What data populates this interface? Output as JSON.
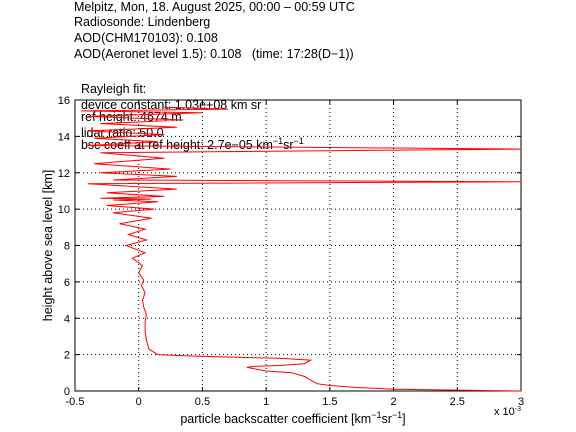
{
  "header": {
    "line1": "Melpitz, Mon, 18. August 2025, 00:00 – 00:59 UTC",
    "line2": "Radiosonde: Lindenberg",
    "line3": "AOD(CHM170103): 0.108",
    "line4": "AOD(Aeronet level 1.5): 0.108   (time: 17:28(D−1))",
    "rayleigh_label": "Rayleigh fit:",
    "ref_height": "ref height: 4674 m",
    "bsc_coeff_prefix": "bsc coeff at ref height: 2.7e−05 km",
    "bsc_sup1": "−1",
    "bsc_sr": "sr",
    "bsc_sup2": "−1",
    "device_constant": "device constant: 1.03e+08 km sr",
    "lidar_ratio": "lidar ratio: 50.0"
  },
  "axes": {
    "xlabel_main": "particle backscatter coefficient [km",
    "xlabel_sup1": "−1",
    "xlabel_sr": "sr",
    "xlabel_sup2": "−1",
    "xlabel_close": "]",
    "ylabel": "height above sea level [km]",
    "x_multiplier": "x 10",
    "x_multiplier_exp": "-3"
  },
  "colors": {
    "profile": "#ff0000",
    "grid": "#000000",
    "axes": "#000000"
  },
  "chart_data": {
    "type": "line",
    "title": "",
    "xlabel": "particle backscatter coefficient [km-1 sr-1]",
    "ylabel": "height above sea level [km]",
    "x_scale_note": "x 10^-3",
    "xlim": [
      -0.5,
      3
    ],
    "ylim": [
      0,
      16
    ],
    "x_ticks": [
      -0.5,
      0,
      0.5,
      1,
      1.5,
      2,
      2.5,
      3
    ],
    "x_tick_labels": [
      "-0.5",
      "0",
      "0.5",
      "1",
      "1.5",
      "2",
      "2.5",
      "3"
    ],
    "y_ticks": [
      0,
      2,
      4,
      6,
      8,
      10,
      12,
      14,
      16
    ],
    "y_tick_labels": [
      "0",
      "2",
      "4",
      "6",
      "8",
      "10",
      "12",
      "14",
      "16"
    ],
    "grid": true,
    "series": [
      {
        "color": "#ff0000",
        "x": [
          3.0,
          2.5,
          2.0,
          1.7,
          1.5,
          1.4,
          1.35,
          1.3,
          1.2,
          1.0,
          0.85,
          0.9,
          1.1,
          1.3,
          1.35,
          1.1,
          0.8,
          0.5,
          0.3,
          0.15,
          0.08,
          0.06,
          0.05,
          0.05,
          0.06,
          0.04,
          0.03,
          0.05,
          0.02,
          0.04,
          0.0,
          0.03,
          -0.05,
          0.05,
          -0.1,
          0.06,
          -0.08,
          0.05,
          -0.15,
          0.1,
          -0.2,
          0.12,
          -0.25,
          0.15,
          -0.2,
          0.1,
          -0.3,
          0.2,
          -0.25,
          0.3,
          -0.4,
          3.0,
          -0.2,
          0.3,
          -0.3,
          0.25,
          -0.35,
          0.2,
          -0.3,
          3.0,
          -0.4,
          0.15,
          -0.35,
          0.2,
          -0.4,
          0.3,
          -0.3,
          0.35,
          -0.4,
          0.5,
          -0.45,
          0.7,
          0.2
        ],
        "y": [
          0.0,
          0.05,
          0.1,
          0.2,
          0.3,
          0.4,
          0.6,
          0.8,
          1.0,
          1.1,
          1.3,
          1.35,
          1.4,
          1.5,
          1.7,
          1.8,
          1.85,
          1.9,
          1.95,
          2.0,
          2.3,
          2.8,
          3.3,
          3.8,
          4.2,
          4.6,
          5.0,
          5.4,
          5.8,
          6.1,
          6.5,
          6.9,
          7.3,
          7.6,
          8.0,
          8.3,
          8.6,
          8.9,
          9.2,
          9.5,
          9.8,
          10.0,
          10.2,
          10.4,
          10.5,
          10.55,
          10.6,
          10.7,
          10.9,
          11.1,
          11.4,
          11.5,
          11.6,
          11.8,
          12.0,
          12.2,
          12.5,
          12.8,
          13.1,
          13.3,
          13.5,
          13.7,
          13.9,
          14.1,
          14.3,
          14.5,
          14.7,
          14.9,
          15.1,
          15.3,
          15.4,
          15.5,
          15.6
        ]
      }
    ]
  }
}
